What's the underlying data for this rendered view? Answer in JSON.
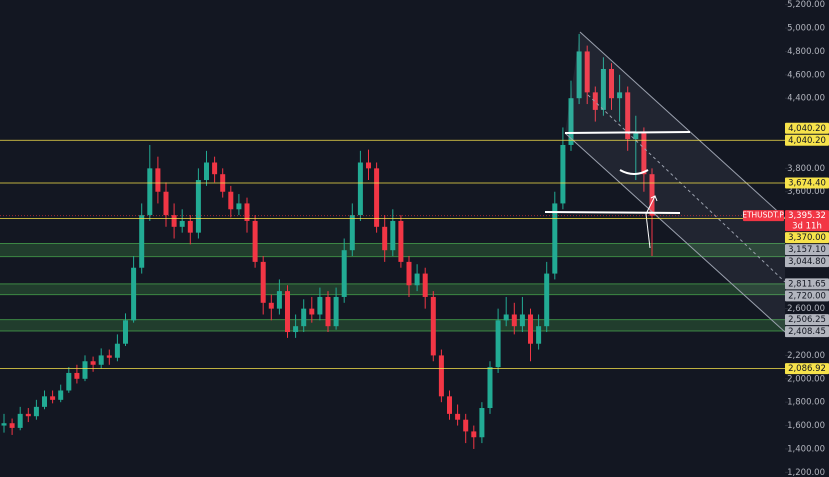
{
  "chart_data": {
    "type": "candlestick",
    "symbol": "ETHUSDT.P",
    "up_color": "#22ab94",
    "down_color": "#f23645",
    "ylim": [
      1160,
      5240
    ],
    "yticks": [
      {
        "value": 5200,
        "label": "5,200.00"
      },
      {
        "value": 5000,
        "label": "5,000.00"
      },
      {
        "value": 4800,
        "label": "4,800.00"
      },
      {
        "value": 4600,
        "label": "4,600.00"
      },
      {
        "value": 4400,
        "label": "4,400.00"
      },
      {
        "value": 3800,
        "label": "3,800.00"
      },
      {
        "value": 3600,
        "label": "3,600.00"
      },
      {
        "value": 2600,
        "label": "2,600.00"
      },
      {
        "value": 2200,
        "label": "2,200.00"
      },
      {
        "value": 2000,
        "label": "2,000.00"
      },
      {
        "value": 1800,
        "label": "1,800.00"
      },
      {
        "value": 1600,
        "label": "1,600.00"
      },
      {
        "value": 1400,
        "label": "1,400.00"
      },
      {
        "value": 1200,
        "label": "1,200.00"
      }
    ],
    "grid": false,
    "open": [
      1600,
      1620,
      1580,
      1700,
      1680,
      1760,
      1850,
      1820,
      1900,
      2050,
      2000,
      2150,
      2120,
      2200,
      2180,
      2300,
      2500,
      2950,
      3400,
      3800,
      3600,
      3400,
      3300,
      3350,
      3250,
      3700,
      3850,
      3750,
      3600,
      3450,
      3500,
      3350,
      3000,
      2650,
      2600,
      2750,
      2400,
      2450,
      2600,
      2550,
      2700,
      2450,
      2700,
      3100,
      3400,
      3850,
      3800,
      3300,
      3100,
      3350,
      3000,
      2800,
      2900,
      2700,
      2200,
      1850,
      1700,
      1650,
      1550,
      1500,
      1750,
      2100,
      2500,
      2550,
      2450,
      2550,
      2300,
      2450,
      2900,
      3500,
      4000,
      4400,
      4800,
      4450,
      4300,
      4650,
      4400,
      4450,
      4050,
      4100,
      3750
    ],
    "high": [
      1700,
      1660,
      1760,
      1750,
      1820,
      1900,
      1900,
      1950,
      2100,
      2120,
      2200,
      2190,
      2260,
      2250,
      2380,
      2560,
      3050,
      3500,
      4000,
      3900,
      3680,
      3500,
      3450,
      3400,
      3800,
      3950,
      3900,
      3800,
      3650,
      3580,
      3550,
      3400,
      3050,
      2720,
      2850,
      2800,
      2550,
      2680,
      2700,
      2780,
      2750,
      2780,
      3200,
      3500,
      3950,
      3960,
      3850,
      3400,
      3450,
      3400,
      3050,
      2980,
      2950,
      2750,
      2250,
      1900,
      1780,
      1700,
      1600,
      1800,
      2150,
      2600,
      2700,
      2650,
      2700,
      2600,
      2550,
      3000,
      3600,
      4150,
      4550,
      4950,
      4850,
      4500,
      4750,
      4700,
      4600,
      4500,
      4250,
      4150,
      3800
    ],
    "low": [
      1540,
      1520,
      1560,
      1630,
      1650,
      1740,
      1790,
      1800,
      1880,
      1960,
      1980,
      2060,
      2090,
      2120,
      2150,
      2280,
      2480,
      2900,
      3350,
      3500,
      3300,
      3200,
      3250,
      3150,
      3200,
      3650,
      3680,
      3550,
      3380,
      3400,
      3250,
      2950,
      2550,
      2500,
      2550,
      2350,
      2350,
      2400,
      2480,
      2500,
      2400,
      2420,
      2650,
      3050,
      3350,
      3700,
      3250,
      3000,
      3050,
      2950,
      2700,
      2750,
      2600,
      2150,
      1800,
      1650,
      1600,
      1450,
      1400,
      1450,
      1700,
      2050,
      2450,
      2380,
      2400,
      2150,
      2250,
      2400,
      2850,
      3450,
      3950,
      4350,
      4350,
      4200,
      4250,
      4300,
      4200,
      3950,
      3700,
      3600,
      3050
    ],
    "close": [
      1620,
      1580,
      1700,
      1680,
      1760,
      1850,
      1820,
      1900,
      2050,
      2000,
      2150,
      2120,
      2200,
      2180,
      2300,
      2500,
      2950,
      3400,
      3800,
      3600,
      3400,
      3300,
      3350,
      3250,
      3700,
      3850,
      3750,
      3600,
      3450,
      3500,
      3350,
      3000,
      2650,
      2600,
      2750,
      2400,
      2450,
      2600,
      2550,
      2700,
      2450,
      2700,
      3100,
      3400,
      3850,
      3800,
      3300,
      3100,
      3350,
      3000,
      2800,
      2900,
      2700,
      2200,
      1850,
      1700,
      1650,
      1550,
      1500,
      1750,
      2100,
      2500,
      2550,
      2450,
      2550,
      2300,
      2450,
      2900,
      3500,
      4000,
      4400,
      4800,
      4450,
      4300,
      4650,
      4400,
      4450,
      4050,
      4100,
      3750,
      3395.32
    ],
    "last_price": {
      "value": 3395.32,
      "label": "3,395.32",
      "countdown": "3d 11h",
      "color": "#f23645"
    },
    "alerts": [
      {
        "value": 4040.2,
        "label": "4,040.20",
        "color": "#f7e34b"
      }
    ],
    "lines": [
      {
        "value": 4040.2,
        "label": "4,040.20",
        "color": "#f7e34b"
      },
      {
        "value": 3674.4,
        "label": "3,674.40",
        "color": "#f7e34b"
      },
      {
        "value": 3370.0,
        "label": "3,370.00",
        "color": "#f7e34b"
      },
      {
        "value": 2086.92,
        "label": "2,086.92",
        "color": "#f7e34b"
      }
    ],
    "zones": [
      {
        "top": {
          "value": 3157.1,
          "label": "3,157.10"
        },
        "bottom": {
          "value": 3044.8,
          "label": "3,044.80"
        },
        "color": "#4caf50"
      },
      {
        "top": {
          "value": 2811.65,
          "label": "2,811.65"
        },
        "bottom": {
          "value": 2720.0,
          "label": "2,720.00"
        },
        "color": "#4caf50"
      },
      {
        "top": {
          "value": 2506.25,
          "label": "2,506.25"
        },
        "bottom": {
          "value": 2408.45,
          "label": "2,408.45"
        },
        "color": "#4caf50"
      }
    ]
  }
}
